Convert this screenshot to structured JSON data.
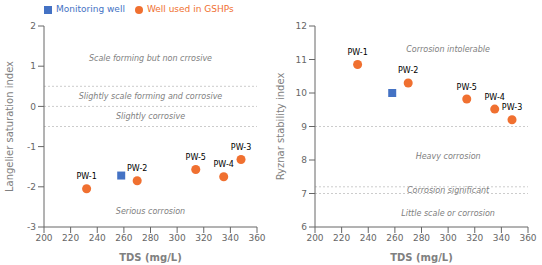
{
  "chart_data": [
    {
      "type": "scatter",
      "xlabel": "TDS (mg/L)",
      "ylabel": "Langelier saturation index",
      "xlim": [
        200,
        360
      ],
      "ylim": [
        -3,
        2
      ],
      "xticks": [
        200,
        220,
        240,
        260,
        280,
        300,
        320,
        340,
        360
      ],
      "yticks": [
        -3,
        -2,
        -1,
        0,
        1,
        2
      ],
      "legend": "upper left",
      "hlines": [
        0.5,
        0,
        -0.5
      ],
      "annotations": [
        {
          "text": "Scale forming but non crrosive",
          "x": 280,
          "y": 1.2
        },
        {
          "text": "Slightly scale forming and corrosive",
          "x": 280,
          "y": 0.25
        },
        {
          "text": "Slightly corrosive",
          "x": 280,
          "y": -0.25
        },
        {
          "text": "Serious corrosion",
          "x": 280,
          "y": -2.6
        }
      ],
      "series": [
        {
          "name": "Monitoring well",
          "color": "#4472c4",
          "marker": "square",
          "x": [
            258
          ],
          "values": [
            -1.72
          ]
        },
        {
          "name": "Well used in GSHPs",
          "color": "#f07030",
          "marker": "circle",
          "x": [
            232,
            270,
            348,
            335,
            314
          ],
          "values": [
            -2.05,
            -1.85,
            -1.32,
            -1.75,
            -1.57
          ],
          "labels": [
            "PW-1",
            "PW-2",
            "PW-3",
            "PW-4",
            "PW-5"
          ]
        }
      ]
    },
    {
      "type": "scatter",
      "xlabel": "TDS (mg/L)",
      "ylabel": "Ryznar stability index",
      "xlim": [
        200,
        360
      ],
      "ylim": [
        6,
        12
      ],
      "xticks": [
        200,
        220,
        240,
        260,
        280,
        300,
        320,
        340,
        360
      ],
      "yticks": [
        6,
        7,
        8,
        9,
        10,
        11,
        12
      ],
      "hlines": [
        9.0,
        7.2,
        7.0
      ],
      "annotations": [
        {
          "text": "Corrosion intolerable",
          "x": 300,
          "y": 11.3
        },
        {
          "text": "Heavy corrosion",
          "x": 300,
          "y": 8.1
        },
        {
          "text": "Corrosion significant",
          "x": 300,
          "y": 7.1
        },
        {
          "text": "Little scale or corrosion",
          "x": 300,
          "y": 6.4
        }
      ],
      "series": [
        {
          "name": "Monitoring well",
          "color": "#4472c4",
          "marker": "square",
          "x": [
            258
          ],
          "values": [
            10.0
          ]
        },
        {
          "name": "Well used in GSHPs",
          "color": "#f07030",
          "marker": "circle",
          "x": [
            232,
            270,
            348,
            335,
            314
          ],
          "values": [
            10.85,
            10.3,
            9.2,
            9.52,
            9.82
          ],
          "labels": [
            "PW-1",
            "PW-2",
            "PW-3",
            "PW-4",
            "PW-5"
          ]
        }
      ]
    }
  ]
}
